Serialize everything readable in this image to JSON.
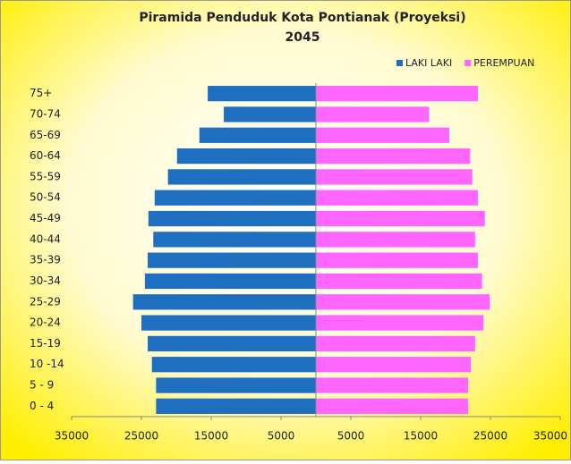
{
  "chart_data": {
    "type": "pyramid",
    "title": "Piramida Penduduk Kota Pontianak (Proyeksi)",
    "subtitle": "2045",
    "categories": [
      "0 - 4",
      "5 - 9",
      "10 -14",
      "15-19",
      "20-24",
      "25-29",
      "30-34",
      "35-39",
      "40-44",
      "45-49",
      "50-54",
      "55-59",
      "60-64",
      "65-69",
      "70-74",
      "75+"
    ],
    "series": [
      {
        "name": "LAKI LAKI",
        "color": "#1f6fc0",
        "values": [
          -22900,
          -22900,
          -23500,
          -24100,
          -25000,
          -26200,
          -24500,
          -24100,
          -23300,
          -24000,
          -23100,
          -21200,
          -19900,
          -16700,
          -13200,
          -15500
        ]
      },
      {
        "name": "PEREMPUAN",
        "color": "#ff66ff",
        "values": [
          21800,
          21800,
          22200,
          22800,
          24000,
          24900,
          23800,
          23200,
          22800,
          24200,
          23200,
          22400,
          22100,
          19100,
          16200,
          23200
        ]
      }
    ],
    "xlim": [
      -35000,
      35000
    ],
    "xticks": [
      {
        "value": -35000,
        "label": "35000"
      },
      {
        "value": -25000,
        "label": "25000"
      },
      {
        "value": -15000,
        "label": "15000"
      },
      {
        "value": -5000,
        "label": "5000"
      },
      5000,
      15000,
      25000,
      35000
    ],
    "legend": "top-right"
  }
}
